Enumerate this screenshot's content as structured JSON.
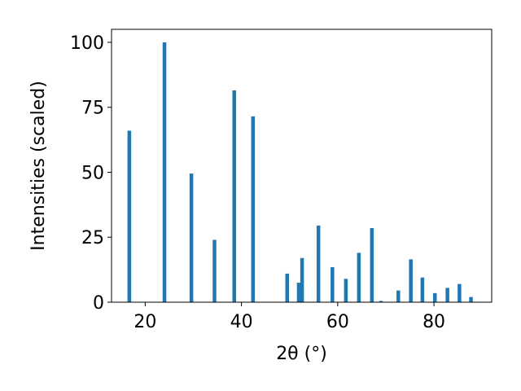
{
  "chart_data": {
    "type": "bar",
    "xlabel": "2θ (°)",
    "ylabel": "Intensities (scaled)",
    "xlim": [
      13,
      92
    ],
    "ylim": [
      0,
      105
    ],
    "xticks": [
      20,
      40,
      60,
      80
    ],
    "yticks": [
      0,
      25,
      50,
      75,
      100
    ],
    "bar_color": "#1f77b4",
    "grid": false,
    "legend": "none",
    "series": [
      {
        "x": [
          16.7,
          24.0,
          29.6,
          34.4,
          38.5,
          42.4,
          49.5,
          51.9,
          52.6,
          56.0,
          58.9,
          61.7,
          64.4,
          67.1,
          69.0,
          72.6,
          75.2,
          77.6,
          80.2,
          82.8,
          85.3,
          87.7
        ],
        "values": [
          66,
          100,
          49.5,
          24,
          81.5,
          71.5,
          11,
          7.5,
          17,
          29.5,
          13.5,
          9,
          19,
          28.5,
          0.5,
          4.5,
          16.5,
          9.5,
          3.5,
          5.5,
          7,
          2
        ]
      }
    ]
  }
}
